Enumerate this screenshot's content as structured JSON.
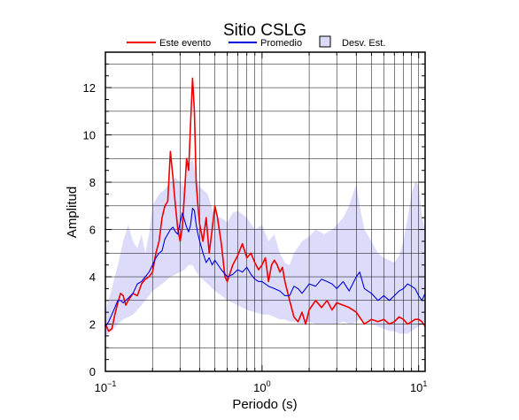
{
  "chart_data": {
    "type": "line",
    "title": "Sitio CSLG",
    "xlabel": "Periodo (s)",
    "ylabel": "Amplitud",
    "xscale": "log",
    "xlim": [
      0.1,
      11
    ],
    "ylim": [
      0,
      13.5
    ],
    "x_ticks": [
      {
        "value": 0.1,
        "base": "10",
        "exp": "−1"
      },
      {
        "value": 1,
        "base": "10",
        "exp": "0"
      },
      {
        "value": 10,
        "base": "10",
        "exp": "1"
      }
    ],
    "y_ticks": [
      0,
      2,
      4,
      6,
      8,
      10,
      12
    ],
    "grid": true,
    "legend_position": "top",
    "legend": [
      {
        "label": "Este evento",
        "kind": "line",
        "color": "#ee0000"
      },
      {
        "label": "Promedio",
        "kind": "line",
        "color": "#0000dd"
      },
      {
        "label": "Desv. Est.",
        "kind": "patch",
        "color": "#dcdcfa"
      }
    ],
    "series": [
      {
        "name": "Este evento",
        "color": "#ee0000",
        "x": [
          0.1,
          0.105,
          0.11,
          0.115,
          0.12,
          0.125,
          0.13,
          0.135,
          0.14,
          0.15,
          0.16,
          0.17,
          0.18,
          0.19,
          0.2,
          0.21,
          0.22,
          0.23,
          0.24,
          0.25,
          0.26,
          0.27,
          0.28,
          0.29,
          0.3,
          0.31,
          0.32,
          0.33,
          0.34,
          0.35,
          0.36,
          0.37,
          0.38,
          0.39,
          0.4,
          0.42,
          0.44,
          0.46,
          0.48,
          0.5,
          0.52,
          0.55,
          0.58,
          0.6,
          0.65,
          0.7,
          0.75,
          0.8,
          0.85,
          0.9,
          0.95,
          1.0,
          1.05,
          1.1,
          1.15,
          1.2,
          1.25,
          1.3,
          1.35,
          1.4,
          1.5,
          1.6,
          1.7,
          1.8,
          1.9,
          2.0,
          2.2,
          2.4,
          2.6,
          2.8,
          3.0,
          3.3,
          3.6,
          4.0,
          4.5,
          5.0,
          5.5,
          6.0,
          6.5,
          7.0,
          7.5,
          8.0,
          8.5,
          9.0,
          9.5,
          10.0,
          10.5,
          11.0
        ],
        "y": [
          2.0,
          1.7,
          1.8,
          2.4,
          2.9,
          3.3,
          3.2,
          2.8,
          3.0,
          3.3,
          3.2,
          3.7,
          3.9,
          4.0,
          4.2,
          5.0,
          5.5,
          6.5,
          7.0,
          7.2,
          9.3,
          8.2,
          7.0,
          6.0,
          5.5,
          6.1,
          7.5,
          9.0,
          8.5,
          10.5,
          12.4,
          11.0,
          8.0,
          7.0,
          6.2,
          5.5,
          6.5,
          5.0,
          6.0,
          7.0,
          6.5,
          5.4,
          4.0,
          3.8,
          4.5,
          4.9,
          5.4,
          4.8,
          5.0,
          4.6,
          4.3,
          4.5,
          4.8,
          3.8,
          4.5,
          4.7,
          4.5,
          4.2,
          4.4,
          3.8,
          3.0,
          2.3,
          2.1,
          2.5,
          2.0,
          2.6,
          3.0,
          2.7,
          3.0,
          2.6,
          2.9,
          2.8,
          2.7,
          2.5,
          2.0,
          2.2,
          2.1,
          2.2,
          2.0,
          2.1,
          2.3,
          2.2,
          2.0,
          2.1,
          2.2,
          2.2,
          2.1,
          1.9
        ]
      },
      {
        "name": "Promedio",
        "color": "#0000dd",
        "x": [
          0.1,
          0.105,
          0.11,
          0.115,
          0.12,
          0.125,
          0.13,
          0.14,
          0.15,
          0.16,
          0.17,
          0.18,
          0.19,
          0.2,
          0.21,
          0.22,
          0.23,
          0.24,
          0.25,
          0.26,
          0.27,
          0.28,
          0.29,
          0.3,
          0.31,
          0.32,
          0.33,
          0.34,
          0.35,
          0.36,
          0.37,
          0.38,
          0.39,
          0.4,
          0.42,
          0.44,
          0.46,
          0.48,
          0.5,
          0.55,
          0.6,
          0.65,
          0.7,
          0.75,
          0.8,
          0.85,
          0.9,
          0.95,
          1.0,
          1.1,
          1.2,
          1.3,
          1.4,
          1.5,
          1.6,
          1.7,
          1.8,
          1.9,
          2.0,
          2.2,
          2.4,
          2.6,
          2.8,
          3.0,
          3.3,
          3.6,
          4.0,
          4.2,
          4.5,
          5.0,
          5.5,
          6.0,
          6.5,
          7.0,
          7.5,
          8.0,
          8.5,
          9.0,
          9.5,
          10.0,
          10.5,
          11.0
        ],
        "y": [
          1.9,
          2.1,
          2.4,
          2.7,
          3.0,
          3.0,
          2.9,
          3.1,
          3.3,
          3.7,
          3.8,
          4.0,
          4.2,
          4.5,
          4.8,
          5.0,
          5.1,
          5.6,
          5.8,
          6.0,
          6.1,
          5.9,
          5.8,
          6.3,
          6.7,
          6.4,
          6.1,
          5.9,
          6.2,
          6.9,
          6.8,
          6.2,
          5.8,
          5.5,
          5.0,
          4.6,
          4.8,
          4.5,
          4.7,
          4.3,
          4.0,
          4.1,
          4.3,
          4.2,
          4.4,
          4.1,
          3.9,
          3.8,
          3.8,
          3.6,
          3.5,
          3.4,
          3.2,
          3.2,
          3.6,
          3.5,
          3.3,
          3.5,
          3.7,
          3.6,
          3.9,
          3.8,
          3.7,
          3.5,
          3.8,
          3.4,
          4.0,
          4.2,
          3.5,
          3.3,
          3.0,
          3.2,
          3.0,
          3.2,
          3.4,
          3.5,
          3.7,
          3.6,
          3.5,
          3.2,
          3.0,
          3.3
        ]
      }
    ],
    "band": {
      "name": "Desv. Est.",
      "color": "#dcdcfa",
      "x": [
        0.1,
        0.11,
        0.12,
        0.13,
        0.14,
        0.15,
        0.16,
        0.17,
        0.18,
        0.19,
        0.2,
        0.22,
        0.24,
        0.26,
        0.28,
        0.3,
        0.32,
        0.34,
        0.36,
        0.38,
        0.4,
        0.45,
        0.5,
        0.55,
        0.6,
        0.65,
        0.7,
        0.8,
        0.9,
        1.0,
        1.1,
        1.2,
        1.3,
        1.4,
        1.5,
        1.6,
        1.8,
        2.0,
        2.2,
        2.5,
        2.8,
        3.0,
        3.3,
        3.6,
        3.8,
        4.0,
        4.2,
        4.5,
        5.0,
        5.5,
        6.0,
        6.5,
        7.0,
        7.5,
        8.0,
        8.5,
        9.0,
        9.5,
        10.0,
        10.5,
        11.0
      ],
      "upper": [
        2.5,
        3.5,
        4.5,
        5.5,
        6.2,
        5.5,
        5.2,
        5.8,
        5.0,
        5.8,
        7.0,
        7.5,
        7.7,
        8.0,
        8.2,
        8.0,
        7.8,
        8.7,
        9.0,
        8.2,
        7.8,
        7.5,
        6.5,
        6.5,
        6.3,
        6.7,
        6.8,
        6.5,
        6.0,
        6.2,
        5.5,
        5.8,
        5.0,
        4.6,
        4.5,
        5.0,
        5.5,
        5.7,
        6.0,
        5.8,
        6.0,
        6.2,
        6.5,
        7.0,
        7.5,
        7.9,
        7.0,
        6.0,
        5.5,
        5.0,
        4.8,
        4.7,
        4.6,
        4.9,
        5.5,
        6.5,
        7.5,
        8.0,
        7.9,
        6.5,
        6.0
      ],
      "lower": [
        1.5,
        1.7,
        2.0,
        2.2,
        2.3,
        2.4,
        2.6,
        2.8,
        3.0,
        3.2,
        3.4,
        3.6,
        3.8,
        4.0,
        4.1,
        4.2,
        4.3,
        4.5,
        4.5,
        4.2,
        4.0,
        3.7,
        3.4,
        3.2,
        3.0,
        2.9,
        2.8,
        2.6,
        2.5,
        2.4,
        2.4,
        2.3,
        2.2,
        2.2,
        2.1,
        2.1,
        2.0,
        2.1,
        2.0,
        2.0,
        2.0,
        2.0,
        2.1,
        2.0,
        2.0,
        2.1,
        2.2,
        2.1,
        2.0,
        1.9,
        1.8,
        1.7,
        1.7,
        1.6,
        1.6,
        1.6,
        1.7,
        1.8,
        1.9,
        2.0,
        2.1
      ]
    }
  }
}
